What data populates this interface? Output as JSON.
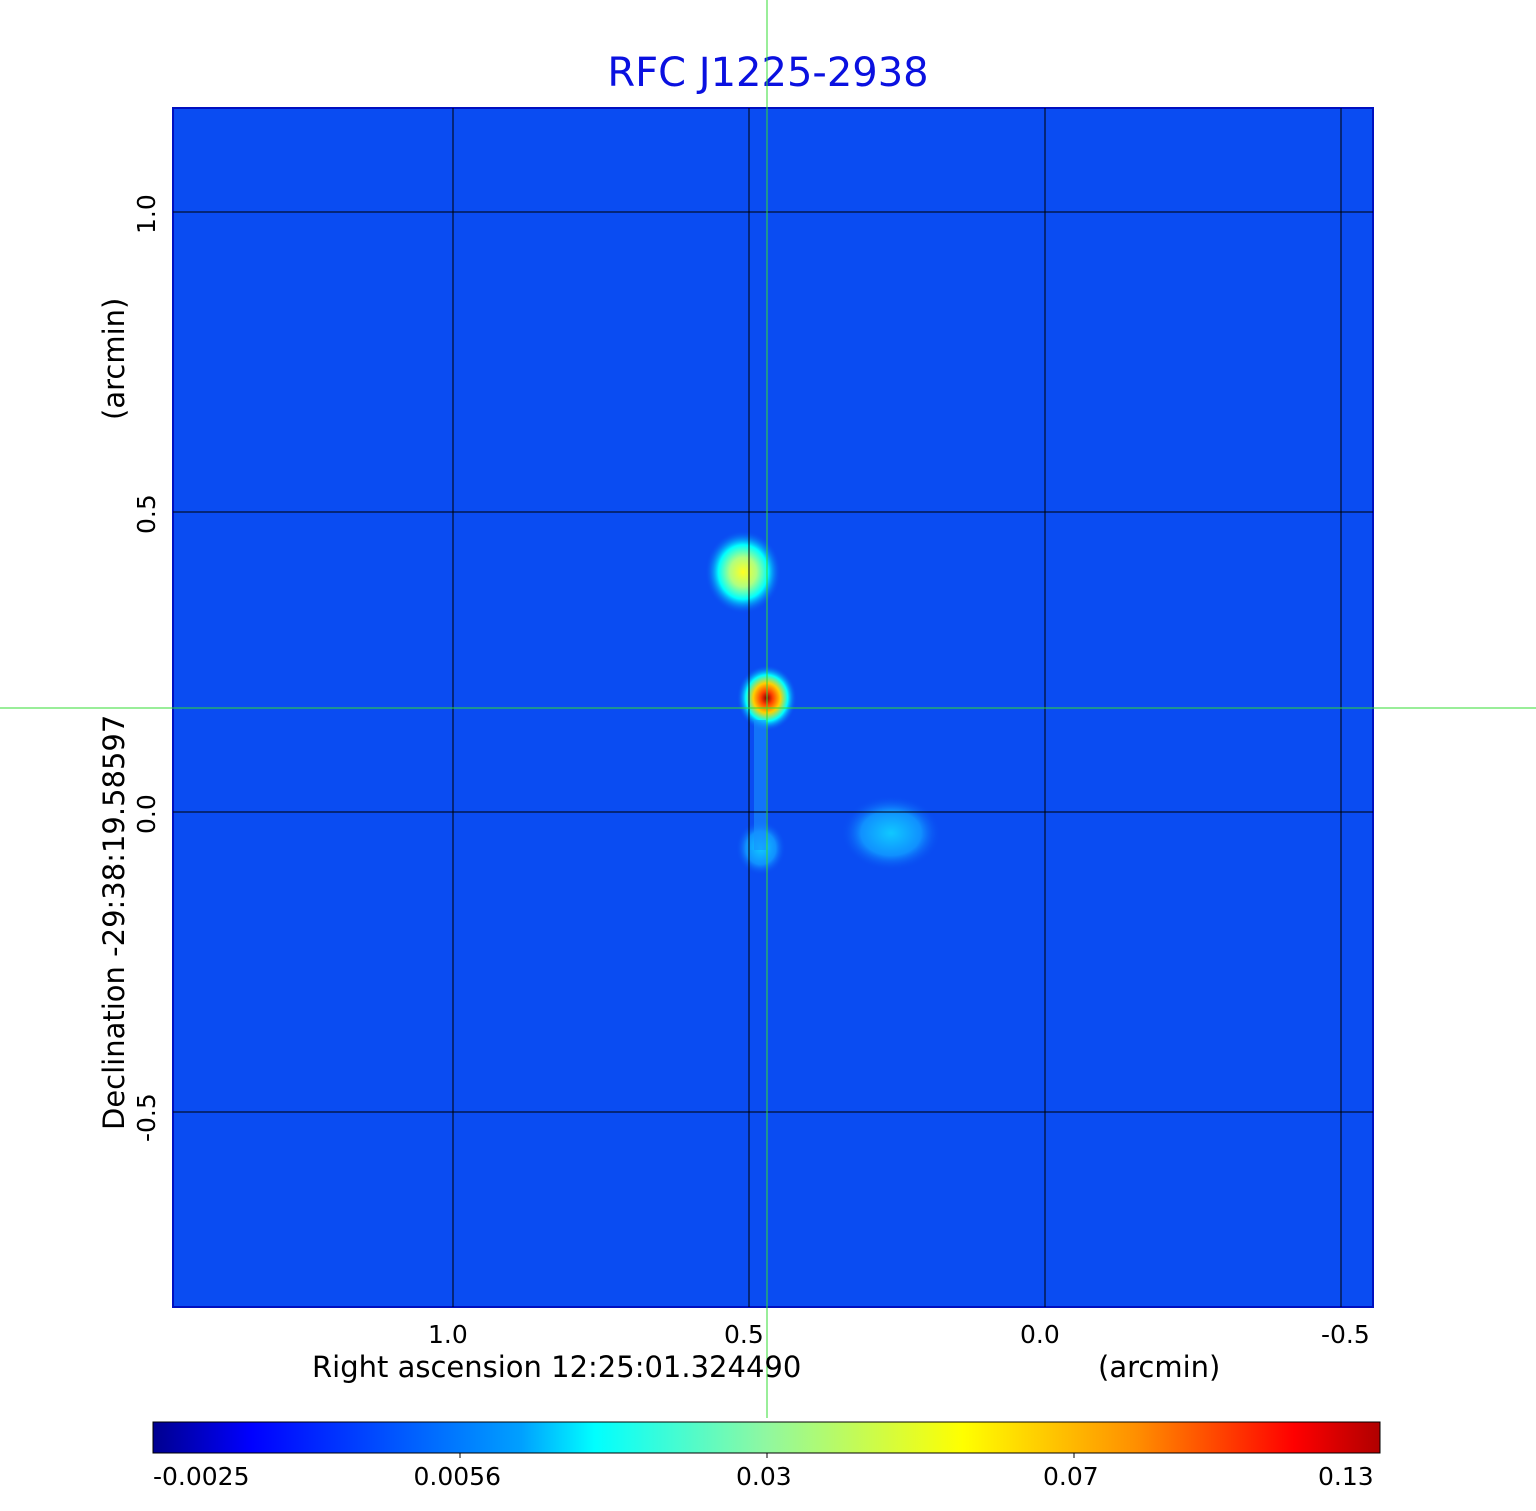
{
  "chart_data": {
    "type": "heatmap",
    "title": "RFC J1225-2938",
    "xlabel": "Right ascension  12:25:01.324490",
    "xunit": "(arcmin)",
    "ylabel": "Declination  -29:38:19.58597",
    "yunit": "(arcmin)",
    "xlim": [
      1.47,
      -0.56
    ],
    "ylim": [
      -0.83,
      1.17
    ],
    "xticks": [
      "1.0",
      "0.5",
      "0.0",
      "-0.5"
    ],
    "xtick_values": [
      1.0,
      0.5,
      0.0,
      -0.5
    ],
    "yticks": [
      "1.0",
      "0.5",
      "0.0",
      "-0.5"
    ],
    "ytick_values": [
      1.0,
      0.5,
      0.0,
      -0.5
    ],
    "grid": true,
    "crosshair": {
      "ra": 0.47,
      "dec": 0.17
    },
    "background_value": 0.0,
    "sources": [
      {
        "ra": 0.51,
        "dec": 0.4,
        "peak": 0.06
      },
      {
        "ra": 0.47,
        "dec": 0.19,
        "peak": 0.13
      },
      {
        "ra": 0.48,
        "dec": -0.06,
        "peak": 0.012
      },
      {
        "ra": 0.26,
        "dec": -0.035,
        "peak": 0.01
      }
    ],
    "colorbar": {
      "ticks": [
        "-0.0025",
        "0.0056",
        "0.03",
        "0.07",
        "0.13"
      ],
      "colormap": "jet"
    }
  },
  "colors": {
    "title": "#0a10e0",
    "background": "#0a4cf2",
    "crosshair": "#33dd33"
  }
}
